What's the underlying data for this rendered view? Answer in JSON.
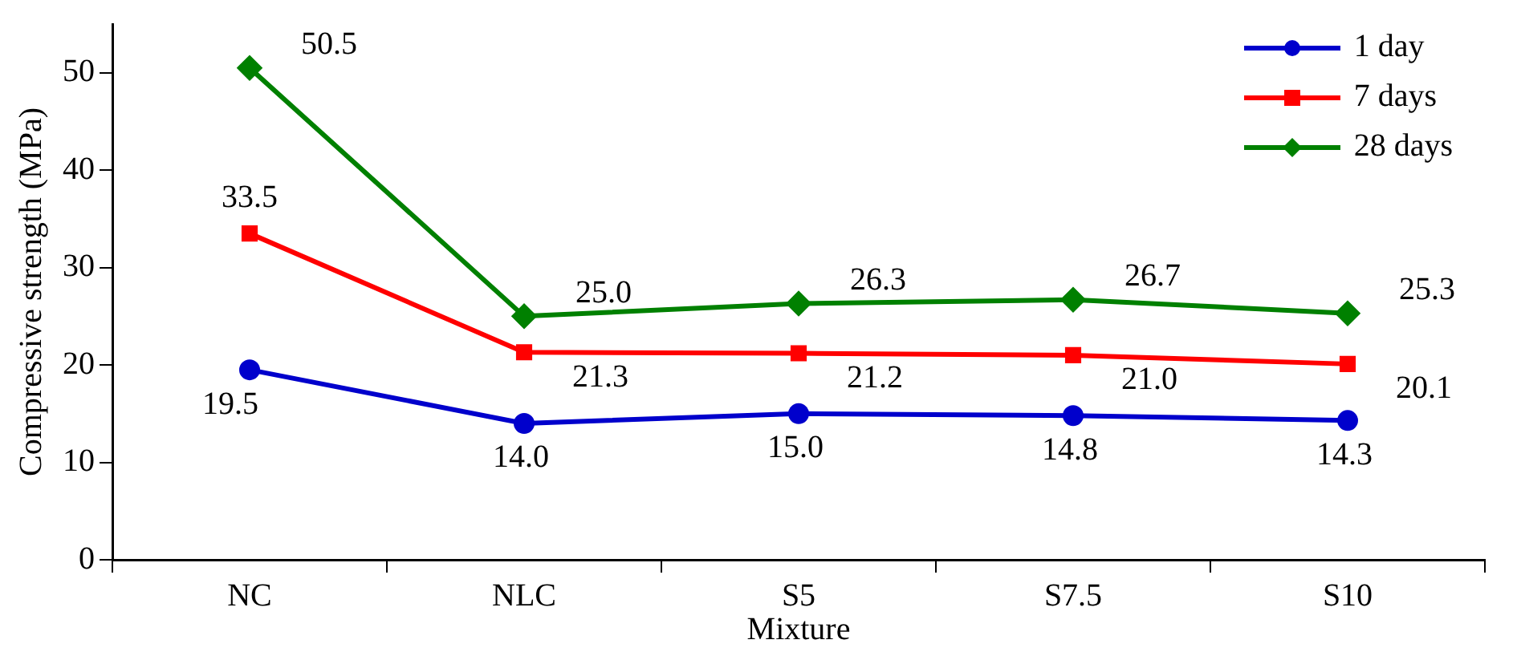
{
  "chart_data": {
    "type": "line",
    "xlabel": "Mixture",
    "ylabel": "Compressive strength (MPa)",
    "categories": [
      "NC",
      "NLC",
      "S5",
      "S7.5",
      "S10"
    ],
    "series": [
      {
        "name": "1 day",
        "color": "#0000cc",
        "marker": "circle",
        "values": [
          19.5,
          14.0,
          15.0,
          14.8,
          14.3
        ],
        "value_labels": [
          "19.5",
          "14.0",
          "15.0",
          "14.8",
          "14.3"
        ]
      },
      {
        "name": "7 days",
        "color": "#ff0000",
        "marker": "square",
        "values": [
          33.5,
          21.3,
          21.2,
          21.0,
          20.1
        ],
        "value_labels": [
          "33.5",
          "21.3",
          "21.2",
          "21.0",
          "20.1"
        ]
      },
      {
        "name": "28 days",
        "color": "#008000",
        "marker": "diamond",
        "values": [
          50.5,
          25.0,
          26.3,
          26.7,
          25.3
        ],
        "value_labels": [
          "50.5",
          "25.0",
          "26.3",
          "26.7",
          "25.3"
        ]
      }
    ],
    "ylim": [
      0,
      55
    ],
    "yticks": [
      0,
      10,
      20,
      30,
      40,
      50
    ],
    "grid": false,
    "legend": "top right",
    "line_style": "solid"
  }
}
